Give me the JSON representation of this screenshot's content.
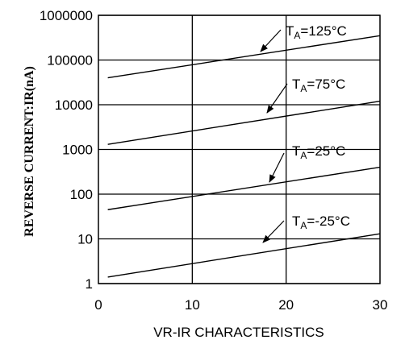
{
  "chart_data": {
    "type": "line",
    "xlabel": "VR-IR CHARACTERISTICS",
    "ylabel": "REVERSE CURRENT:IR(nA)",
    "xlim": [
      0,
      30
    ],
    "ylim": [
      1,
      1000000
    ],
    "yscale": "log",
    "x_ticks": [
      "0",
      "10",
      "20",
      "30"
    ],
    "y_ticks": [
      "1",
      "10",
      "100",
      "1000",
      "10000",
      "100000",
      "1000000"
    ],
    "grid": true,
    "series": [
      {
        "label_prefix": "T",
        "label_sub": "A",
        "label_value": "=125°C",
        "x": [
          1,
          30
        ],
        "y": [
          40000,
          350000
        ]
      },
      {
        "label_prefix": "T",
        "label_sub": "A",
        "label_value": "=75°C",
        "x": [
          1,
          30
        ],
        "y": [
          1300,
          12000
        ]
      },
      {
        "label_prefix": "T",
        "label_sub": "A",
        "label_value": "=25°C",
        "x": [
          1,
          30
        ],
        "y": [
          45,
          400
        ]
      },
      {
        "label_prefix": "T",
        "label_sub": "A",
        "label_value": "=-25°C",
        "x": [
          1,
          30
        ],
        "y": [
          1.4,
          13
        ]
      }
    ]
  }
}
